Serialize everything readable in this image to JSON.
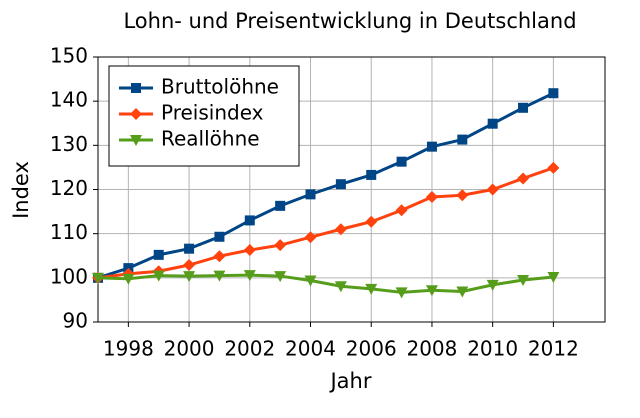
{
  "chart_data": {
    "type": "line",
    "title": "Lohn- und Preisentwicklung in Deutschland",
    "x_label": "Jahr",
    "y_label": "Index",
    "x": [
      1997,
      1998,
      1999,
      2000,
      2001,
      2002,
      2003,
      2004,
      2005,
      2006,
      2007,
      2008,
      2009,
      2010,
      2011,
      2012
    ],
    "series": [
      {
        "name": "Bruttolöhne",
        "color": "#004586",
        "marker": "square",
        "values": [
          100,
          102.2,
          105.2,
          106.6,
          109.3,
          113,
          116.3,
          118.9,
          121.2,
          123.3,
          126.3,
          129.7,
          131.3,
          134.9,
          138.5,
          141.8
        ]
      },
      {
        "name": "Preisindex",
        "color": "#ff420e",
        "marker": "diamond",
        "values": [
          100,
          100.9,
          101.5,
          102.9,
          104.9,
          106.3,
          107.4,
          109.2,
          111,
          112.7,
          115.3,
          118.3,
          118.7,
          120,
          122.5,
          124.9
        ]
      },
      {
        "name": "Reallöhne",
        "color": "#579d1c",
        "marker": "triangle-down",
        "values": [
          100,
          99.8,
          100.5,
          100.4,
          100.5,
          100.6,
          100.4,
          99.4,
          98.1,
          97.5,
          96.7,
          97.2,
          96.9,
          98.4,
          99.5,
          100.2
        ]
      }
    ],
    "xlim": [
      1997,
      2013.7
    ],
    "xticks": [
      1998,
      2000,
      2002,
      2004,
      2006,
      2008,
      2010,
      2012
    ],
    "ylim": [
      90,
      150
    ],
    "yticks": [
      90,
      100,
      110,
      120,
      130,
      140,
      150
    ],
    "grid": true,
    "legend": "upper left"
  }
}
